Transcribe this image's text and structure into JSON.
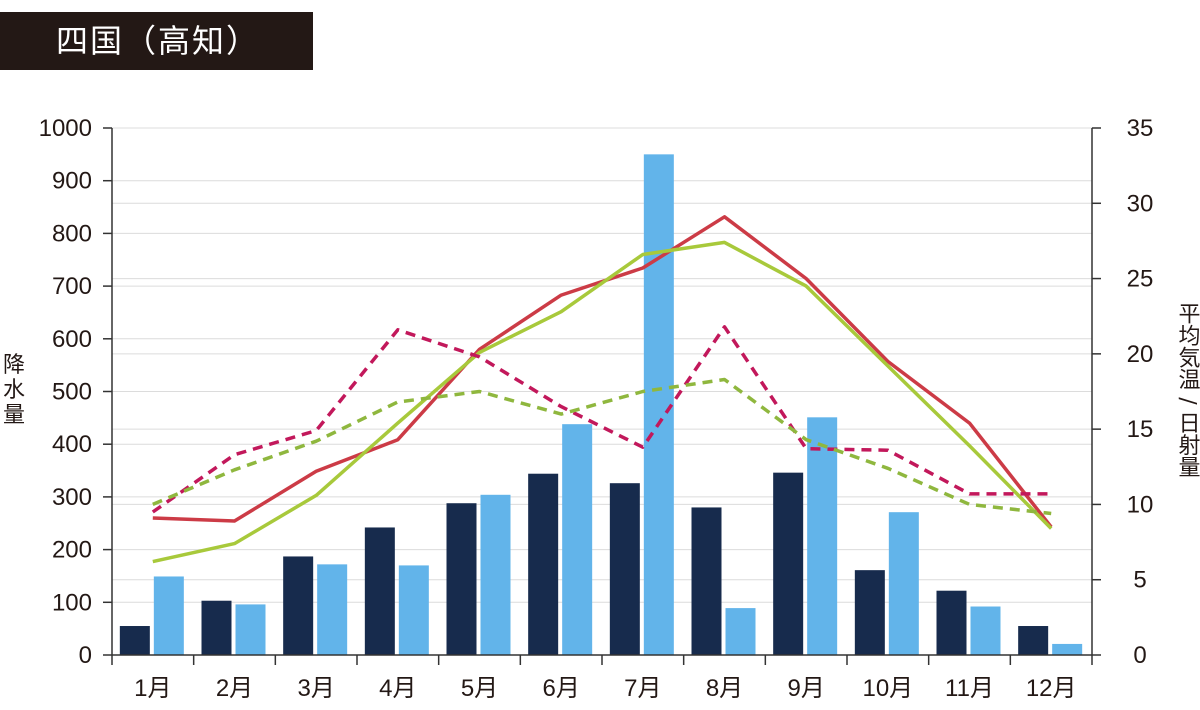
{
  "header": {
    "title": "四国（高知）"
  },
  "chart_data": {
    "type": "bar",
    "categories": [
      "1月",
      "2月",
      "3月",
      "4月",
      "5月",
      "6月",
      "7月",
      "8月",
      "9月",
      "10月",
      "11月",
      "12月"
    ],
    "left_axis": {
      "label": "降水量",
      "ylim": [
        0,
        1000
      ],
      "ticks": [
        0,
        100,
        200,
        300,
        400,
        500,
        600,
        700,
        800,
        900,
        1000
      ]
    },
    "right_axis": {
      "label": "平均気温 / 日射量",
      "ylim": [
        0,
        35
      ],
      "ticks": [
        0,
        5,
        10,
        15,
        20,
        25,
        30,
        35
      ]
    },
    "grid": true,
    "bar_series": [
      {
        "color": "#172b4d",
        "values": [
          55,
          103,
          187,
          242,
          288,
          344,
          326,
          280,
          346,
          161,
          122,
          55
        ]
      },
      {
        "color": "#62b4ea",
        "values": [
          149,
          96,
          172,
          170,
          304,
          438,
          950,
          89,
          451,
          271,
          92,
          21
        ]
      }
    ],
    "line_series": [
      {
        "color": "#cc3b46",
        "style": "solid",
        "values": [
          9.1,
          8.9,
          12.2,
          14.3,
          20.3,
          23.9,
          25.7,
          29.1,
          25.0,
          19.5,
          15.4,
          8.5
        ]
      },
      {
        "color": "#a8c93b",
        "style": "solid",
        "values": [
          6.2,
          7.4,
          10.6,
          15.4,
          20.1,
          22.8,
          26.6,
          27.4,
          24.5,
          19.2,
          13.9,
          8.4
        ]
      },
      {
        "color": "#c2185b",
        "style": "dashed",
        "values": [
          9.5,
          13.3,
          14.9,
          21.6,
          19.8,
          16.5,
          13.8,
          21.8,
          13.7,
          13.6,
          10.7,
          10.7
        ]
      },
      {
        "color": "#8fb73e",
        "style": "dashed",
        "values": [
          10.0,
          12.3,
          14.2,
          16.8,
          17.5,
          16.0,
          17.5,
          18.3,
          14.3,
          12.4,
          10.0,
          9.4
        ]
      }
    ]
  }
}
